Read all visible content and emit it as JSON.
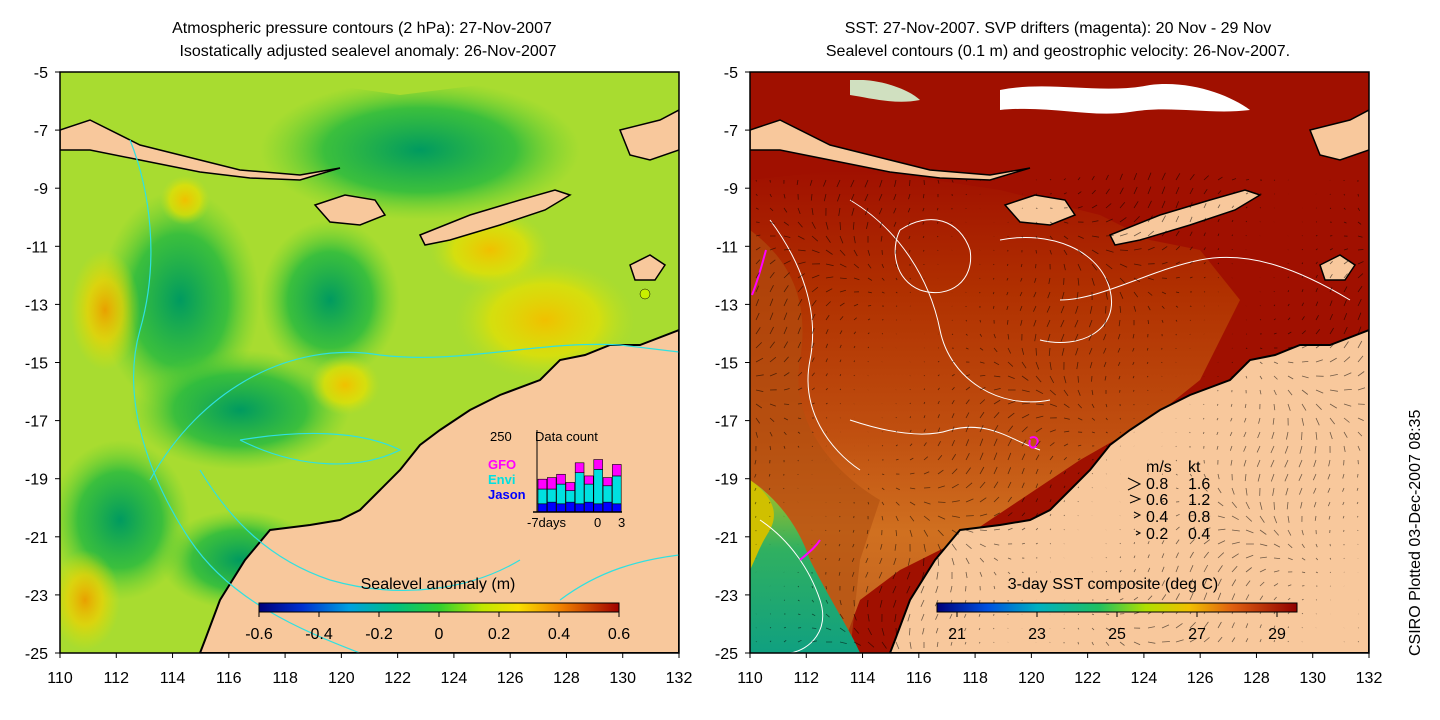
{
  "left_panel": {
    "title_line1": "Atmospheric pressure contours (2 hPa): 27-Nov-2007",
    "title_line2": "Isostatically adjusted sealevel anomaly: 26-Nov-2007",
    "colorbar_label": "Sealevel anomaly (m)",
    "colorbar_ticks": [
      "-0.6",
      "-0.4",
      "-0.2",
      "0",
      "0.2",
      "0.4",
      "0.6"
    ],
    "colorbar_range": [
      -0.6,
      0.6
    ],
    "inset": {
      "max_label": "250",
      "title": "Data count",
      "satellites": [
        {
          "name": "GFO",
          "color": "#ff00ff"
        },
        {
          "name": "Envi",
          "color": "#00e0e0"
        },
        {
          "name": "Jason",
          "color": "#0000ff"
        }
      ],
      "x_label_left": "-7days",
      "x_label_mid": "0",
      "x_label_right": "3",
      "bars": [
        {
          "jason": 25,
          "envi": 45,
          "gfo": 30
        },
        {
          "jason": 30,
          "envi": 40,
          "gfo": 35
        },
        {
          "jason": 25,
          "envi": 60,
          "gfo": 30
        },
        {
          "jason": 30,
          "envi": 35,
          "gfo": 25
        },
        {
          "jason": 25,
          "envi": 95,
          "gfo": 30
        },
        {
          "jason": 30,
          "envi": 55,
          "gfo": 25
        },
        {
          "jason": 25,
          "envi": 105,
          "gfo": 30
        },
        {
          "jason": 30,
          "envi": 50,
          "gfo": 25
        },
        {
          "jason": 25,
          "envi": 85,
          "gfo": 35
        }
      ]
    }
  },
  "right_panel": {
    "title_line1": "SST: 27-Nov-2007. SVP drifters (magenta): 20 Nov - 29 Nov",
    "title_line2": "Sealevel contours (0.1 m) and geostrophic velocity: 26-Nov-2007.",
    "colorbar_label": "3-day SST composite (deg C)",
    "colorbar_ticks": [
      "21",
      "23",
      "25",
      "27",
      "29"
    ],
    "colorbar_range": [
      20.5,
      29.5
    ],
    "velocity_legend": {
      "header_ms": "m/s",
      "header_kt": "kt",
      "rows": [
        {
          "ms": "0.8",
          "kt": "1.6"
        },
        {
          "ms": "0.6",
          "kt": "1.2"
        },
        {
          "ms": "0.4",
          "kt": "0.8"
        },
        {
          "ms": "0.2",
          "kt": "0.4"
        }
      ]
    }
  },
  "axes": {
    "x_ticks": [
      "110",
      "112",
      "114",
      "116",
      "118",
      "120",
      "122",
      "124",
      "126",
      "128",
      "130",
      "132"
    ],
    "y_ticks": [
      "-5",
      "-7",
      "-9",
      "-11",
      "-13",
      "-15",
      "-17",
      "-19",
      "-21",
      "-23",
      "-25"
    ],
    "lon_range": [
      110,
      132
    ],
    "lat_range": [
      -25,
      -5
    ]
  },
  "credit": "CSIRO Plotted 03-Dec-2007 08:35",
  "colors": {
    "land": "#f8c89c",
    "coast": "#000000",
    "contour_cyan": "#30e0e0",
    "sst_warm": "#a01000"
  }
}
